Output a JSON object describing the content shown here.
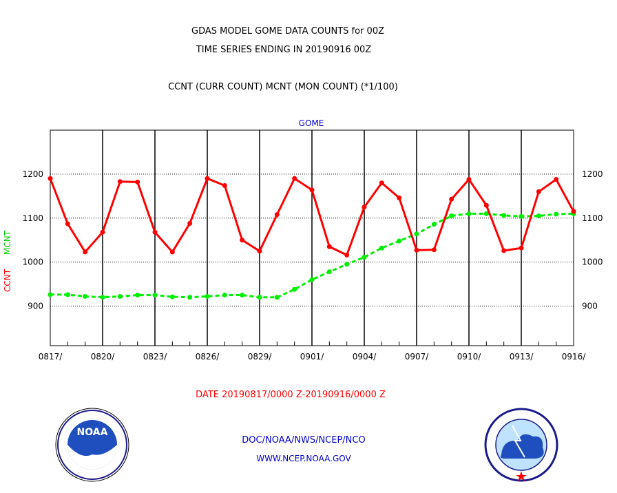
{
  "header": {
    "title_line1": "GDAS MODEL GOME DATA COUNTS for 00Z",
    "title_line2": "TIME SERIES ENDING IN 20190916 00Z",
    "subtitle": "CCNT (CURR COUNT) MCNT (MON COUNT) (*1/100)",
    "panel_label": "GOME"
  },
  "ylabel_ccnt": "CCNT",
  "ylabel_mcnt": "MCNT",
  "date_range": "DATE 20190817/0000 Z-20190916/0000 Z",
  "footer": {
    "org": "DOC/NOAA/NWS/NCEP/NCO",
    "url": "WWW.NCEP.NOAA.GOV"
  },
  "logos": {
    "left": {
      "icon": "noaa-logo-icon",
      "text": "NOAA",
      "ring_text": "NATIONAL OCEANIC AND ATMOSPHERIC ADMINISTRATION · U.S. DEPARTMENT OF COMMERCE"
    },
    "right": {
      "icon": "nws-logo-icon",
      "ring_text": "NATIONAL WEATHER SERVICE"
    }
  },
  "colors": {
    "ccnt": "#ff0000",
    "mcnt": "#00ee00",
    "grid": "#000000",
    "text_blue": "#0000cc",
    "text_red": "#ff0000"
  },
  "chart_data": {
    "type": "line",
    "ylim": [
      810,
      1300
    ],
    "yticks": [
      900,
      1000,
      1100,
      1200
    ],
    "ytick_labels": [
      "900",
      "1000",
      "1100",
      "1200"
    ],
    "xtick_labels": [
      "0817/",
      "0820/",
      "0823/",
      "0826/",
      "0829/",
      "0901/",
      "0904/",
      "0907/",
      "0910/",
      "0913/",
      "0916/"
    ],
    "grid": true,
    "x": [
      "0817",
      "0818",
      "0819",
      "0820",
      "0821",
      "0822",
      "0823",
      "0824",
      "0825",
      "0826",
      "0827",
      "0828",
      "0829",
      "0830",
      "0831",
      "0901",
      "0902",
      "0903",
      "0904",
      "0905",
      "0906",
      "0907",
      "0908",
      "0909",
      "0910",
      "0911",
      "0912",
      "0913",
      "0914",
      "0915",
      "0916"
    ],
    "series": [
      {
        "name": "CCNT",
        "values": [
          1190,
          1087,
          1023,
          1068,
          1183,
          1182,
          1068,
          1023,
          1088,
          1190,
          1174,
          1050,
          1025,
          1108,
          1190,
          1164,
          1035,
          1016,
          1125,
          1180,
          1146,
          1027,
          1028,
          1143,
          1188,
          1129,
          1026,
          1032,
          1160,
          1188,
          1115
        ]
      },
      {
        "name": "MCNT",
        "values": [
          926,
          926,
          922,
          920,
          922,
          925,
          925,
          921,
          920,
          922,
          925,
          925,
          920,
          920,
          938,
          960,
          978,
          995,
          1011,
          1032,
          1048,
          1064,
          1086,
          1105,
          1110,
          1110,
          1106,
          1104,
          1105,
          1109,
          1110
        ]
      }
    ]
  }
}
